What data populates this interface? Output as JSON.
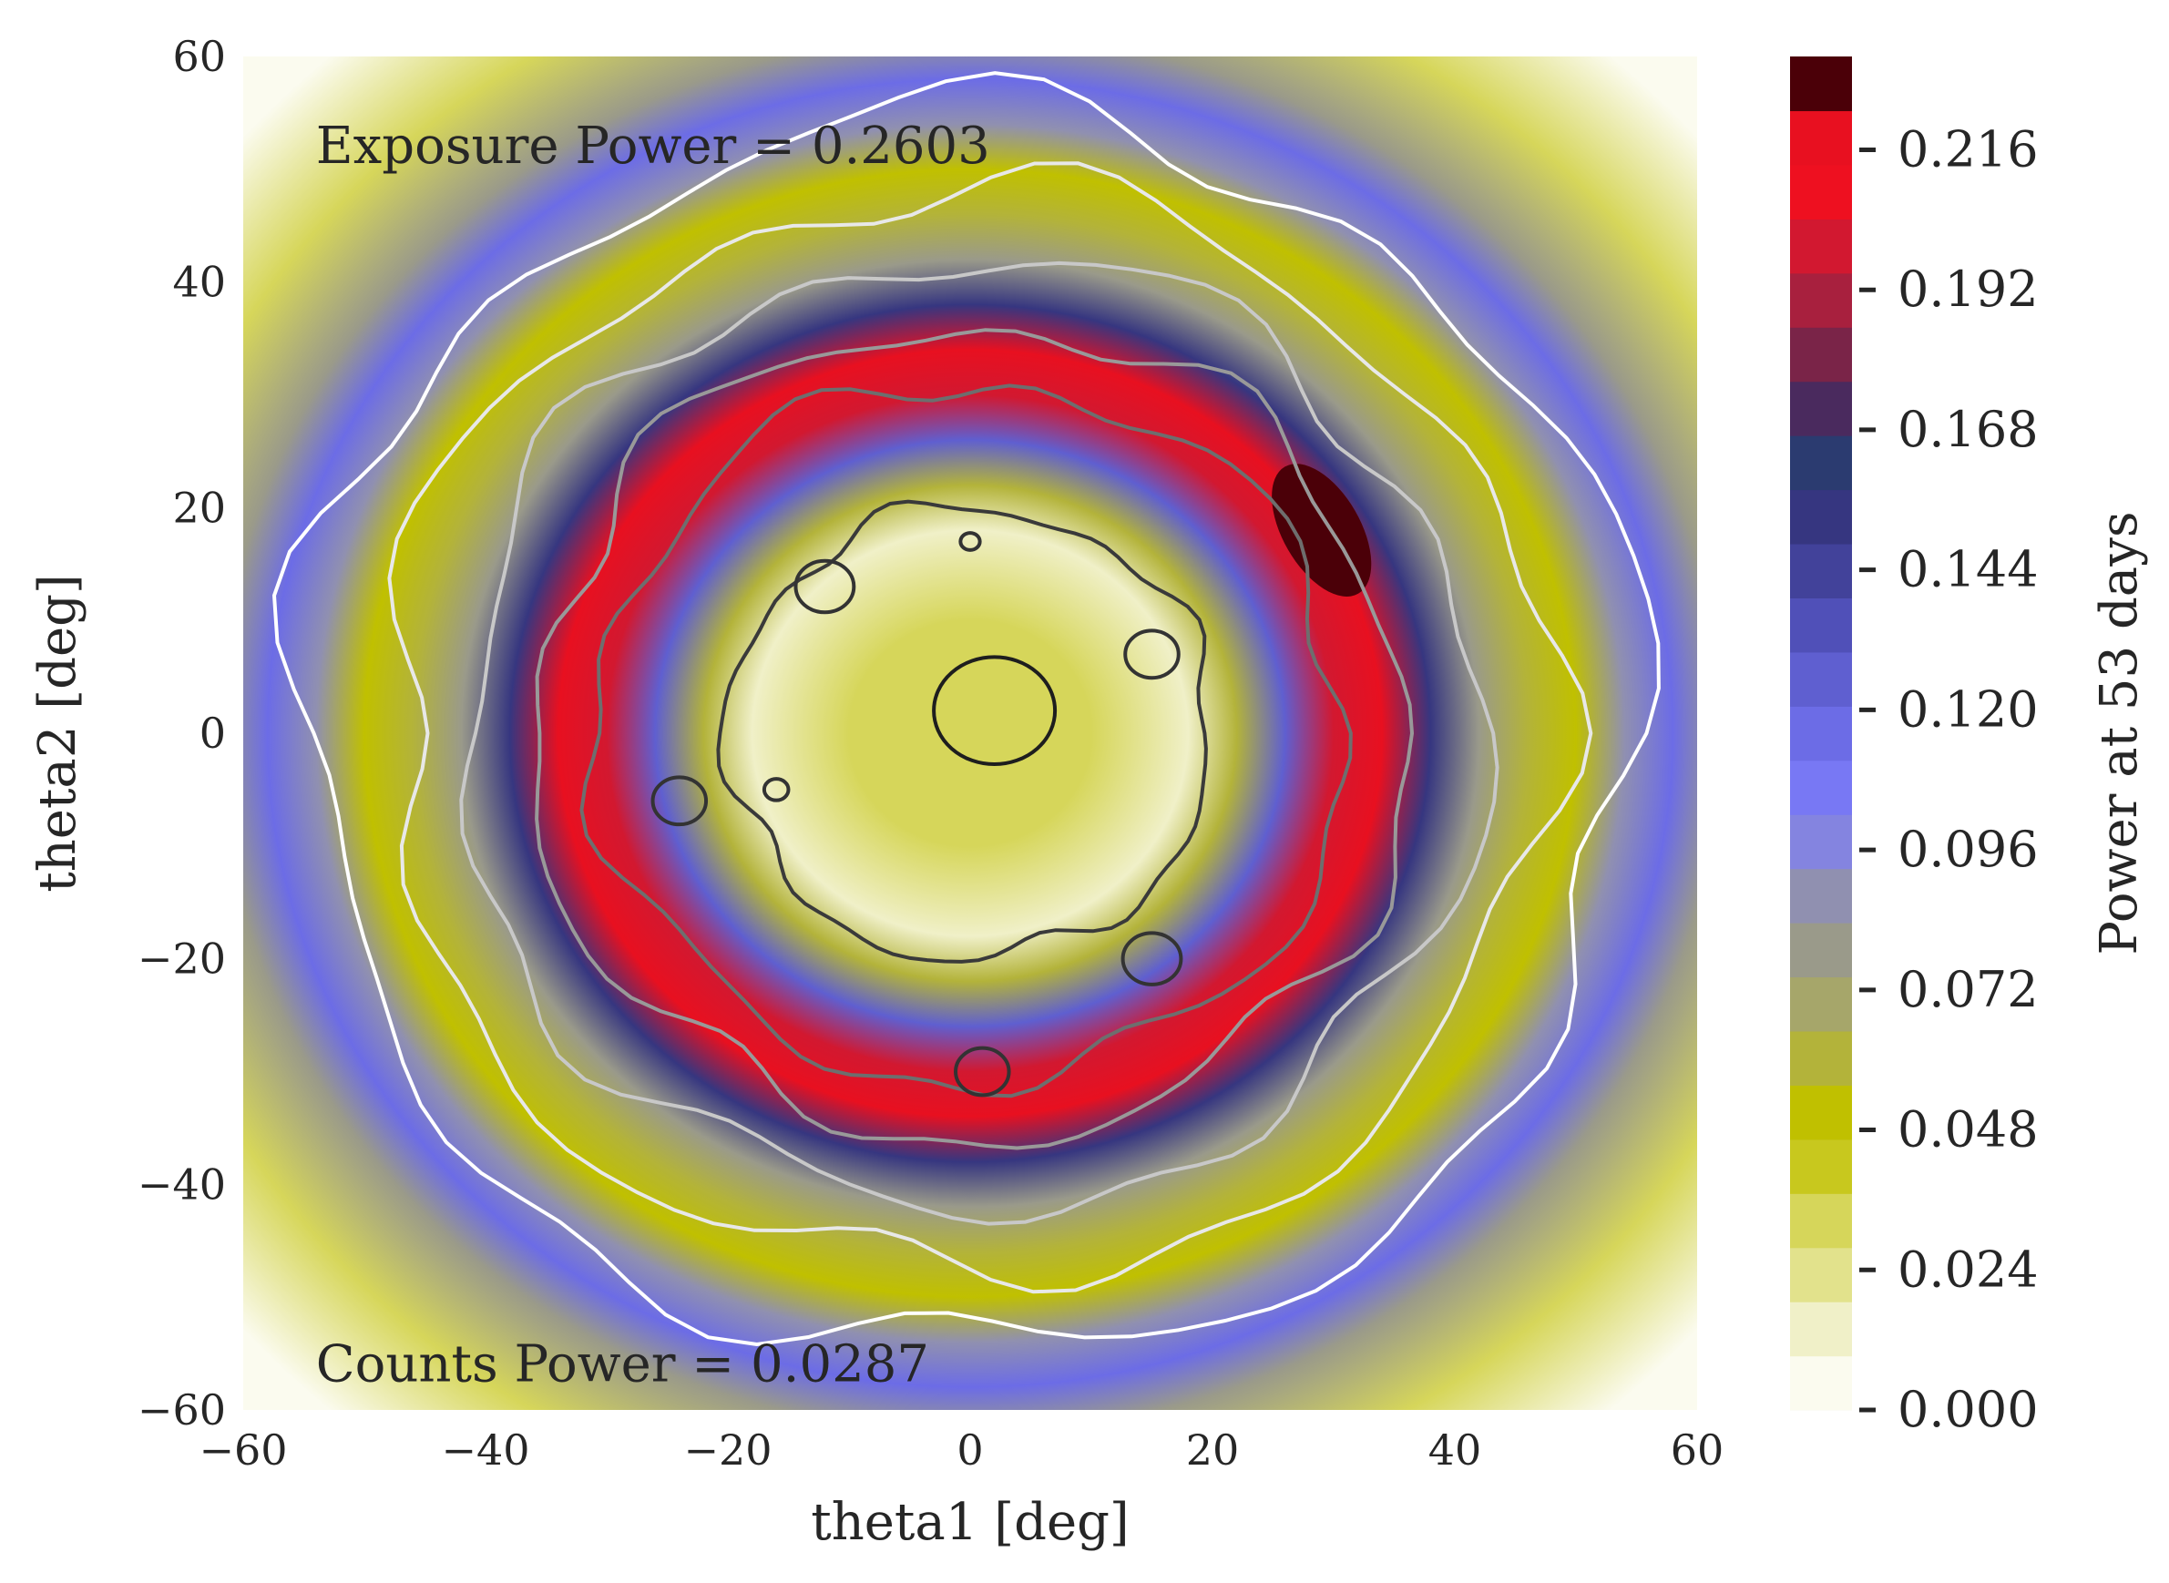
{
  "chart_data": {
    "type": "heatmap",
    "subtype": "filled-contour with overlaid contour lines",
    "xlabel": "theta1 [deg]",
    "ylabel": "theta2 [deg]",
    "xlim": [
      -60,
      60
    ],
    "ylim": [
      -60,
      60
    ],
    "xticks": [
      -60,
      -40,
      -20,
      0,
      20,
      40,
      60
    ],
    "yticks": [
      -60,
      -40,
      -20,
      0,
      20,
      40,
      60
    ],
    "xtick_labels": [
      "−60",
      "−40",
      "−20",
      "0",
      "20",
      "40",
      "60"
    ],
    "ytick_labels": [
      "−60",
      "−40",
      "−20",
      "0",
      "20",
      "40",
      "60"
    ],
    "grid": false,
    "colorbar": {
      "label": "Power at 53 days",
      "ticks": [
        0.0,
        0.024,
        0.048,
        0.072,
        0.096,
        0.12,
        0.144,
        0.168,
        0.192,
        0.216
      ],
      "tick_labels": [
        "0.000",
        "0.024",
        "0.048",
        "0.072",
        "0.096",
        "0.120",
        "0.144",
        "0.168",
        "0.192",
        "0.216"
      ],
      "range": [
        0.0,
        0.232
      ],
      "levels": 29,
      "colormap": [
        "#fbfbef",
        "#f0f0c8",
        "#e2e28c",
        "#d6d65a",
        "#c8c81e",
        "#c0c000",
        "#b3b33a",
        "#a6a66a",
        "#9a9a8a",
        "#9090b0",
        "#8484e0",
        "#7878f4",
        "#6c6ce6",
        "#5f5fd0",
        "#5050b8",
        "#42429a",
        "#363680",
        "#2b3b70",
        "#4a2a5e",
        "#7a2448",
        "#a8203e",
        "#d21830",
        "#ee1020",
        "#e81020",
        "#4b0008"
      ]
    },
    "ring_profile": {
      "description": "Radially symmetric power field; radius in degrees from (0,0) and power value",
      "radius": [
        0,
        10,
        18,
        22,
        26,
        30,
        34,
        38,
        42,
        46,
        50,
        54,
        58,
        62,
        70,
        80
      ],
      "power": [
        0.03,
        0.025,
        0.01,
        0.06,
        0.13,
        0.2,
        0.22,
        0.15,
        0.08,
        0.06,
        0.05,
        0.09,
        0.115,
        0.08,
        0.03,
        0.0
      ]
    },
    "hot_spot": {
      "theta1": 29,
      "theta2": 18,
      "power": 0.232
    },
    "contour_lines": [
      {
        "color": "#ffffff",
        "radius": 55
      },
      {
        "color": "#e8e8e8",
        "radius": 48
      },
      {
        "color": "#c8c8c8",
        "radius": 42
      },
      {
        "color": "#999999",
        "radius": 36
      },
      {
        "color": "#6e6e6e",
        "radius": 31
      },
      {
        "color": "#3a3a3a",
        "radius": 20
      }
    ],
    "annotations": [
      {
        "text": "Exposure Power = 0.2603",
        "theta1": -54,
        "theta2": 52
      },
      {
        "text": "Counts Power = 0.0287",
        "theta1": -54,
        "theta2": -56
      }
    ]
  }
}
